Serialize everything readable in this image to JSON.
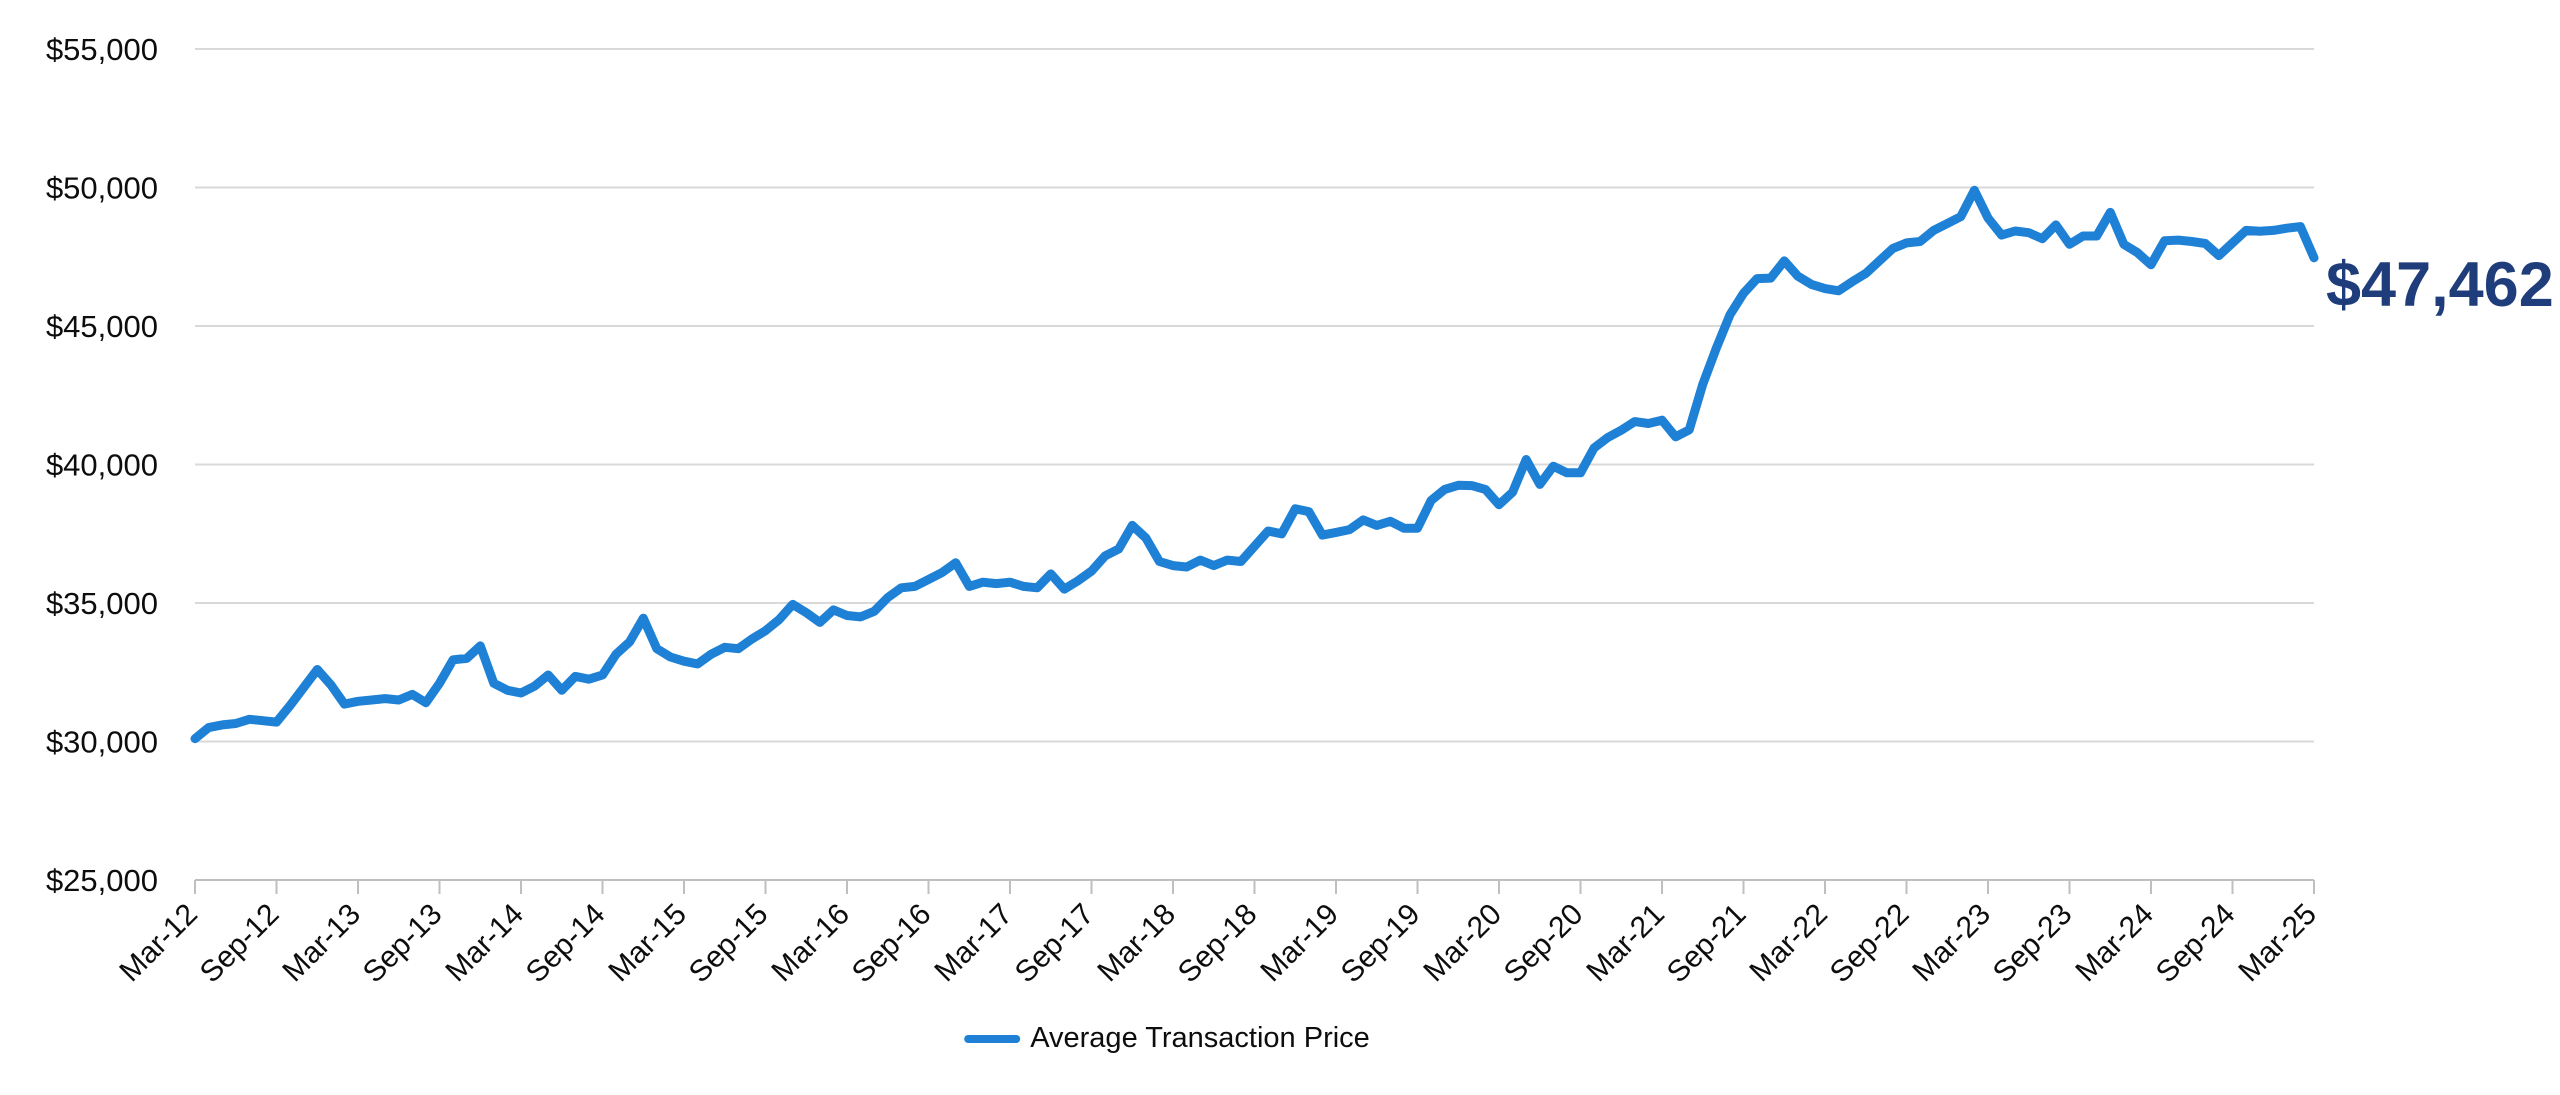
{
  "chart_data": {
    "type": "line",
    "title": "",
    "xlabel": "",
    "ylabel": "",
    "ylim": [
      25000,
      55000
    ],
    "y_tick_step": 5000,
    "y_tick_labels": [
      "$55,000",
      "$50,000",
      "$45,000",
      "$40,000",
      "$35,000",
      "$30,000",
      "$25,000"
    ],
    "x_tick_labels": [
      "Mar-12",
      "Sep-12",
      "Mar-13",
      "Sep-13",
      "Mar-14",
      "Sep-14",
      "Mar-15",
      "Sep-15",
      "Mar-16",
      "Sep-16",
      "Mar-17",
      "Sep-17",
      "Mar-18",
      "Sep-18",
      "Mar-19",
      "Sep-19",
      "Mar-20",
      "Sep-20",
      "Mar-21",
      "Sep-21",
      "Mar-22",
      "Sep-22",
      "Mar-23",
      "Sep-23",
      "Mar-24",
      "Sep-24",
      "Mar-25"
    ],
    "x_months_per_tick": 6,
    "grid": "horizontal",
    "legend_position": "bottom-center",
    "series": [
      {
        "name": "Average Transaction Price",
        "color": "#1E81D6",
        "start_month": "Mar-2012",
        "end_month": "Mar-2025",
        "frequency": "monthly",
        "values": [
          30100,
          30500,
          30600,
          30650,
          30800,
          30750,
          30700,
          31300,
          31950,
          32600,
          32050,
          31350,
          31450,
          31500,
          31550,
          31500,
          31700,
          31400,
          32100,
          32950,
          33000,
          33450,
          32100,
          31850,
          31750,
          32000,
          32400,
          31850,
          32350,
          32250,
          32400,
          33150,
          33600,
          34450,
          33350,
          33050,
          32900,
          32800,
          33150,
          33400,
          33350,
          33700,
          34000,
          34400,
          34950,
          34650,
          34300,
          34750,
          34550,
          34500,
          34700,
          35200,
          35550,
          35600,
          35850,
          36100,
          36450,
          35600,
          35750,
          35700,
          35750,
          35600,
          35550,
          36050,
          35500,
          35800,
          36150,
          36700,
          36950,
          37800,
          37350,
          36500,
          36350,
          36300,
          36550,
          36350,
          36550,
          36500,
          37050,
          37600,
          37500,
          38400,
          38300,
          37450,
          37550,
          37650,
          38000,
          37800,
          37950,
          37700,
          37700,
          38700,
          39100,
          39250,
          39240,
          39100,
          38550,
          39000,
          40180,
          39280,
          39940,
          39700,
          39700,
          40600,
          40970,
          41240,
          41550,
          41480,
          41600,
          41000,
          41250,
          42900,
          44200,
          45400,
          46180,
          46710,
          46730,
          47350,
          46800,
          46500,
          46350,
          46270,
          46600,
          46900,
          47350,
          47800,
          48000,
          48050,
          48450,
          48700,
          48950,
          49900,
          48900,
          48280,
          48430,
          48370,
          48150,
          48650,
          47950,
          48250,
          48250,
          49100,
          47950,
          47650,
          47210,
          48080,
          48100,
          48050,
          47980,
          47540,
          48000,
          48450,
          48420,
          48450,
          48530,
          48590,
          47462
        ]
      }
    ],
    "annotation": {
      "text": "$47,462",
      "value": 47462,
      "color": "#1F3D7A"
    }
  },
  "legend": {
    "label": "Average Transaction Price"
  },
  "colors": {
    "line": "#1E81D6",
    "annotation": "#1F3D7A",
    "gridline": "#D9D9D9",
    "axis": "#BFBFBF",
    "text": "#0d0d0d"
  }
}
